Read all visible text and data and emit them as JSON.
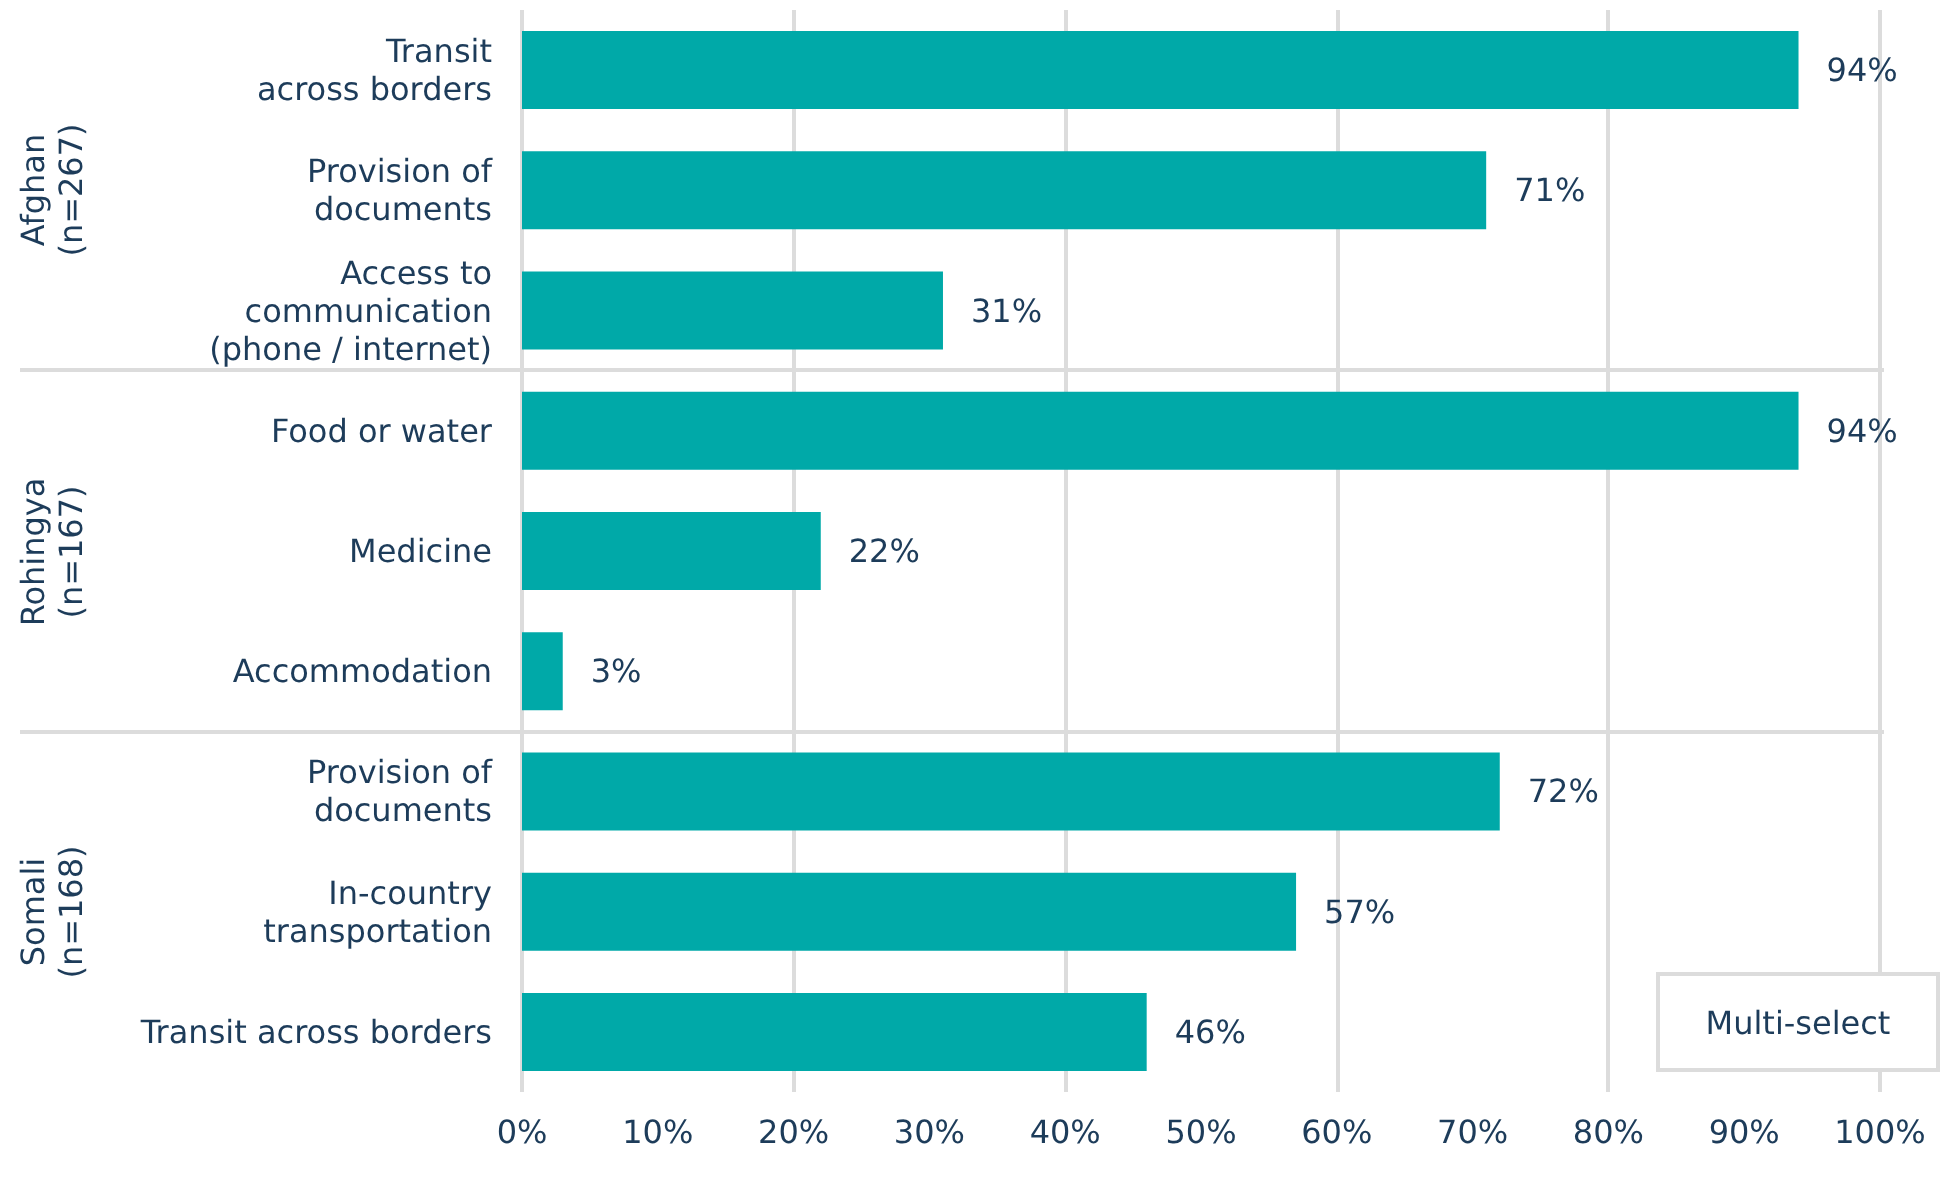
{
  "chart_data": {
    "type": "bar",
    "orientation": "horizontal",
    "categories": [
      "Transit\nacross borders",
      "Provision of\ndocuments",
      "Access to\ncommunication\n(phone / internet)",
      "Food or water",
      "Medicine",
      "Accommodation",
      "Provision of\ndocuments",
      "In-country\ntransportation",
      "Transit across borders"
    ],
    "values": [
      94,
      71,
      31,
      94,
      22,
      3,
      72,
      57,
      46
    ],
    "value_labels": [
      "94%",
      "71%",
      "31%",
      "94%",
      "22%",
      "3%",
      "72%",
      "57%",
      "46%"
    ],
    "color": "#00a9a8",
    "xlim": [
      0,
      100
    ],
    "xticks": [
      {
        "value": 0,
        "label": "0%"
      },
      {
        "value": 10,
        "label": "10%"
      },
      {
        "value": 20,
        "label": "20%"
      },
      {
        "value": 30,
        "label": "30%"
      },
      {
        "value": 40,
        "label": "40%"
      },
      {
        "value": 50,
        "label": "50%"
      },
      {
        "value": 60,
        "label": "60%"
      },
      {
        "value": 70,
        "label": "70%"
      },
      {
        "value": 80,
        "label": "80%"
      },
      {
        "value": 90,
        "label": "90%"
      },
      {
        "value": 100,
        "label": "100%"
      }
    ],
    "grid": "x",
    "annotations": [
      "Afghan\n(n=267)",
      "Rohingya\n(n=167)",
      "Somali\n(n=168)",
      "Multi-select"
    ]
  }
}
